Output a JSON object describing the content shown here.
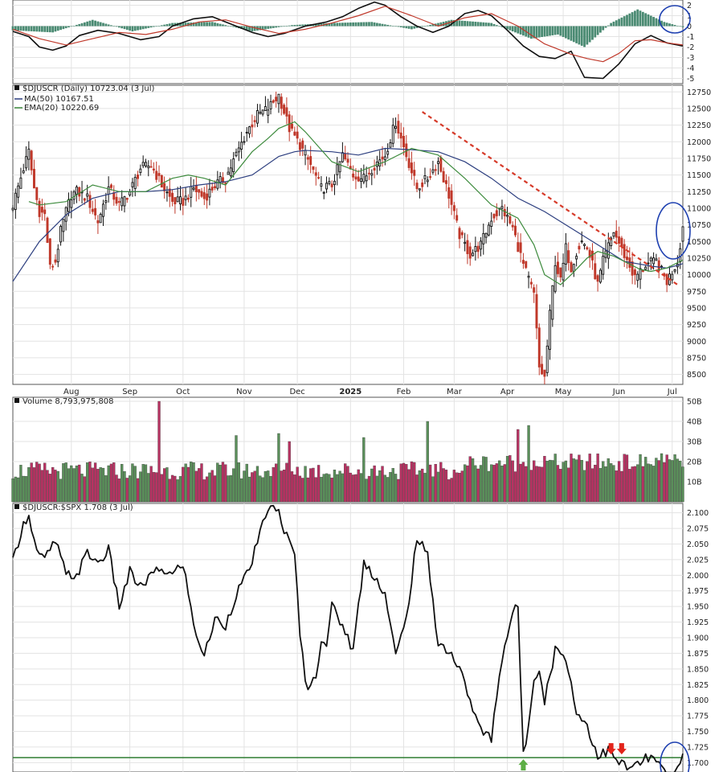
{
  "chart_data": [
    {
      "type": "line",
      "panel": "macd",
      "ylim": [
        -5.5,
        2.5
      ],
      "y_ticks": [
        "2",
        "1",
        "0",
        "-1",
        "-2",
        "-3",
        "-4",
        "-5"
      ],
      "y_tick_values": [
        2,
        1,
        0,
        -1,
        -2,
        -3,
        -4,
        -5
      ],
      "series": [
        {
          "role": "macd",
          "color": "#111111",
          "x": [
            0,
            6,
            10,
            15,
            20,
            25,
            32,
            40,
            48,
            55,
            60,
            68,
            75,
            82,
            90,
            96,
            102,
            110,
            118,
            124,
            130,
            136,
            140,
            146,
            152,
            158,
            164,
            170,
            175,
            180,
            186,
            192,
            198,
            204,
            210,
            215,
            222,
            228,
            234,
            240,
            246,
            252
          ],
          "values": [
            -0.5,
            -1.0,
            -2.0,
            -2.3,
            -1.9,
            -0.9,
            -0.4,
            -0.7,
            -1.3,
            -1.0,
            0.0,
            0.7,
            0.9,
            0.2,
            -0.6,
            -1.0,
            -0.7,
            0.0,
            0.4,
            0.9,
            1.7,
            2.3,
            2.0,
            0.9,
            0.0,
            -0.6,
            0.0,
            1.2,
            1.5,
            1.0,
            -0.4,
            -1.9,
            -2.9,
            -3.1,
            -2.4,
            -4.9,
            -5.0,
            -3.6,
            -1.7,
            -0.9,
            -1.6,
            -1.9
          ]
        },
        {
          "role": "signal",
          "color": "#c0392b",
          "x": [
            0,
            10,
            20,
            30,
            40,
            50,
            60,
            70,
            80,
            90,
            100,
            110,
            120,
            130,
            140,
            150,
            160,
            170,
            180,
            190,
            200,
            210,
            216,
            222,
            228,
            234,
            240,
            246,
            252
          ],
          "values": [
            -0.3,
            -1.2,
            -1.8,
            -1.2,
            -0.6,
            -0.8,
            -0.3,
            0.4,
            0.6,
            -0.1,
            -0.7,
            -0.3,
            0.3,
            1.0,
            1.9,
            1.0,
            0.0,
            0.8,
            1.2,
            0.0,
            -1.7,
            -2.7,
            -3.1,
            -3.4,
            -2.6,
            -1.4,
            -1.3,
            -1.6,
            -1.8
          ]
        }
      ],
      "histogram": {
        "color": "#4a8a72",
        "x": [
          0,
          15,
          30,
          45,
          60,
          75,
          90,
          105,
          120,
          135,
          150,
          165,
          180,
          195,
          205,
          215,
          225,
          235,
          245,
          252
        ],
        "values": [
          -0.4,
          -0.6,
          0.6,
          -0.5,
          0.3,
          0.4,
          -0.5,
          0.1,
          0.3,
          0.4,
          -0.3,
          0.6,
          0.3,
          -1.2,
          -0.8,
          -2.0,
          0.3,
          1.6,
          0.4,
          -0.1
        ]
      }
    },
    {
      "type": "candlestick",
      "panel": "price",
      "legend": {
        "symbol_label": "$DJUSCR (Daily) 10723.04 (3 Jul)",
        "ma_label": "MA(50) 10167.51",
        "ema_label": "EMA(20) 10220.69"
      },
      "colors": {
        "up": "#111111",
        "down": "#c0392b",
        "ma": "#2c3e7f",
        "ema": "#3d8b3d",
        "trendline": "#d63b2a",
        "highlight": "#1d3fb0"
      },
      "ylim": [
        8350,
        12850
      ],
      "y_ticks": [
        "12750",
        "12500",
        "12250",
        "12000",
        "11750",
        "11500",
        "11250",
        "11000",
        "10750",
        "10500",
        "10250",
        "10000",
        "9750",
        "9500",
        "9250",
        "9000",
        "8750",
        "8500"
      ],
      "y_tick_values": [
        12750,
        12500,
        12250,
        12000,
        11750,
        11500,
        11250,
        11000,
        10750,
        10500,
        10250,
        10000,
        9750,
        9500,
        9250,
        9000,
        8750,
        8500
      ],
      "close_path": {
        "x": [
          0,
          4,
          6,
          8,
          10,
          12,
          14,
          16,
          18,
          20,
          22,
          24,
          28,
          32,
          36,
          40,
          44,
          48,
          52,
          56,
          60,
          64,
          68,
          72,
          76,
          80,
          84,
          88,
          92,
          96,
          100,
          104,
          108,
          112,
          116,
          120,
          124,
          128,
          132,
          136,
          140,
          144,
          148,
          152,
          156,
          160,
          164,
          168,
          172,
          176,
          180,
          184,
          188,
          192,
          196,
          198,
          200,
          202,
          204,
          206,
          208,
          210,
          212,
          214,
          216,
          218,
          220,
          222,
          226,
          230,
          234,
          238,
          242,
          246,
          250,
          252
        ],
        "values": [
          11050,
          11600,
          11850,
          11300,
          10950,
          10900,
          10100,
          10200,
          10650,
          10950,
          11200,
          11250,
          11150,
          10800,
          11300,
          11050,
          11250,
          11600,
          11650,
          11350,
          11100,
          11100,
          11300,
          11150,
          11350,
          11450,
          11800,
          12150,
          12400,
          12500,
          12700,
          12200,
          11950,
          11650,
          11300,
          11350,
          11800,
          11500,
          11450,
          11650,
          11800,
          12300,
          11800,
          11300,
          11450,
          11700,
          11200,
          10600,
          10300,
          10450,
          10850,
          11000,
          10700,
          10150,
          9700,
          8600,
          8450,
          9400,
          10200,
          9900,
          10400,
          10100,
          10350,
          10500,
          10400,
          10150,
          9850,
          10200,
          10650,
          10300,
          9950,
          10150,
          10200,
          9900,
          10200,
          10720
        ]
      },
      "ma50_path": {
        "x": [
          0,
          10,
          20,
          30,
          40,
          50,
          60,
          70,
          80,
          90,
          100,
          106,
          110,
          120,
          130,
          140,
          150,
          160,
          170,
          180,
          190,
          200,
          210,
          220,
          230,
          240,
          246,
          250,
          252
        ],
        "values": [
          9900,
          10500,
          10900,
          11150,
          11250,
          11250,
          11280,
          11350,
          11400,
          11500,
          11780,
          11850,
          11870,
          11850,
          11800,
          11900,
          11880,
          11850,
          11700,
          11450,
          11150,
          10950,
          10700,
          10450,
          10200,
          10130,
          10100,
          10140,
          10167
        ]
      },
      "ema20_path": {
        "x": [
          6,
          10,
          20,
          30,
          40,
          50,
          60,
          66,
          72,
          80,
          90,
          96,
          100,
          106,
          110,
          120,
          130,
          140,
          150,
          160,
          170,
          180,
          190,
          196,
          200,
          206,
          210,
          216,
          220,
          226,
          230,
          236,
          240,
          246,
          252
        ],
        "values": [
          11100,
          11050,
          11100,
          11350,
          11250,
          11250,
          11450,
          11500,
          11450,
          11350,
          11850,
          12050,
          12200,
          12300,
          12150,
          11700,
          11550,
          11700,
          11900,
          11800,
          11450,
          11050,
          10850,
          10450,
          10000,
          9850,
          10000,
          10250,
          10350,
          10280,
          10200,
          10080,
          10050,
          10100,
          10220
        ]
      },
      "trendline": {
        "x": [
          154,
          250
        ],
        "values": [
          12450,
          9850
        ]
      },
      "volume": {
        "label": "Volume 8,793,975,808",
        "ylim": [
          0,
          52
        ],
        "y_ticks": [
          "50B",
          "40B",
          "30B",
          "20B",
          "10B"
        ],
        "y_tick_values": [
          50,
          40,
          30,
          20,
          10
        ],
        "spikes": [
          {
            "x": 55,
            "value": 50
          },
          {
            "x": 84,
            "value": 33
          },
          {
            "x": 100,
            "value": 34
          },
          {
            "x": 104,
            "value": 30
          },
          {
            "x": 132,
            "value": 32
          },
          {
            "x": 156,
            "value": 40
          },
          {
            "x": 190,
            "value": 36
          },
          {
            "x": 194,
            "value": 38
          },
          {
            "x": 244,
            "value": 24
          }
        ]
      }
    },
    {
      "type": "line",
      "panel": "ratio",
      "legend_label": "$DJUSCR:$SPX 1.708 (3 Jul)",
      "ylim": [
        1.685,
        2.115
      ],
      "y_ticks": [
        "2.100",
        "2.075",
        "2.050",
        "2.025",
        "2.000",
        "1.975",
        "1.950",
        "1.925",
        "1.900",
        "1.875",
        "1.850",
        "1.825",
        "1.800",
        "1.775",
        "1.750",
        "1.725",
        "1.700"
      ],
      "y_tick_values": [
        2.1,
        2.075,
        2.05,
        2.025,
        2.0,
        1.975,
        1.95,
        1.925,
        1.9,
        1.875,
        1.85,
        1.825,
        1.8,
        1.775,
        1.75,
        1.725,
        1.7
      ],
      "support_level": 1.708,
      "series": [
        {
          "color": "#111111",
          "x": [
            0,
            3,
            6,
            8,
            10,
            12,
            16,
            20,
            24,
            28,
            32,
            36,
            40,
            44,
            48,
            52,
            56,
            60,
            64,
            68,
            72,
            76,
            80,
            84,
            88,
            92,
            96,
            100,
            104,
            106,
            108,
            110,
            112,
            114,
            116,
            118,
            120,
            124,
            128,
            132,
            136,
            140,
            144,
            148,
            152,
            156,
            160,
            164,
            168,
            172,
            176,
            180,
            184,
            188,
            190,
            192,
            194,
            196,
            198,
            200,
            204,
            208,
            212,
            216,
            220,
            224,
            228,
            232,
            236,
            240,
            244,
            246,
            248,
            250,
            252
          ],
          "values": [
            2.02,
            2.07,
            2.1,
            2.055,
            2.03,
            2.025,
            2.055,
            2.0,
            2.0,
            2.035,
            2.02,
            2.04,
            1.95,
            2.005,
            1.98,
            2.0,
            2.01,
            2.0,
            2.02,
            1.92,
            1.87,
            1.93,
            1.92,
            1.97,
            2.0,
            2.05,
            2.11,
            2.1,
            2.05,
            2.03,
            1.91,
            1.83,
            1.82,
            1.84,
            1.9,
            1.89,
            1.95,
            1.92,
            1.88,
            2.02,
            2.0,
            1.97,
            1.87,
            1.93,
            2.06,
            2.03,
            1.89,
            1.88,
            1.85,
            1.8,
            1.75,
            1.74,
            1.87,
            1.94,
            1.95,
            1.71,
            1.76,
            1.84,
            1.85,
            1.8,
            1.88,
            1.87,
            1.78,
            1.76,
            1.71,
            1.72,
            1.7,
            1.69,
            1.7,
            1.71,
            1.69,
            1.68,
            1.67,
            1.69,
            1.71
          ]
        }
      ],
      "markers": [
        {
          "type": "up-arrow",
          "color": "#5cae45",
          "x": 192
        },
        {
          "type": "down-arrow",
          "color": "#e2231a",
          "x": 225
        },
        {
          "type": "down-arrow",
          "color": "#e2231a",
          "x": 229
        }
      ]
    }
  ],
  "x_axis": {
    "labels": [
      "Aug",
      "Sep",
      "Oct",
      "Nov",
      "Dec",
      "2025",
      "Feb",
      "Mar",
      "Apr",
      "May",
      "Jun",
      "Jul"
    ],
    "positions": [
      22,
      44,
      64,
      87,
      107,
      127,
      147,
      166,
      186,
      207,
      228,
      248
    ],
    "bold": [
      "2025"
    ]
  }
}
